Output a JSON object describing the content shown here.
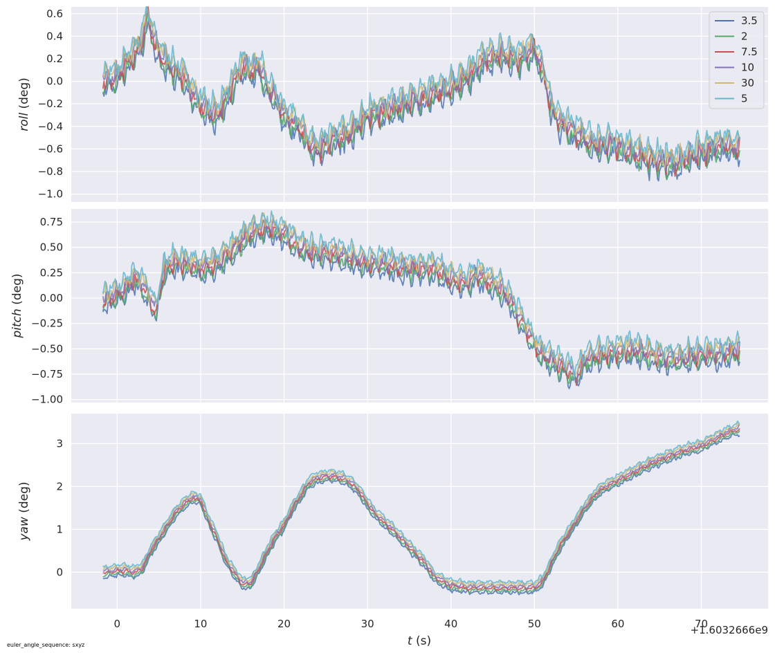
{
  "footnote": "euler_angle_sequence: sxyz",
  "chart_data": {
    "type": "line",
    "shared_x": true,
    "x_axis": {
      "label_var": "t",
      "label_unit": " (s)",
      "offset_text": "+1.6032666e9",
      "ticks": [
        0,
        10,
        20,
        30,
        40,
        50,
        60,
        70
      ],
      "xlim": [
        -5.5,
        78
      ]
    },
    "legend": {
      "location": "upper right of top panel",
      "entries": [
        "3.5",
        "2",
        "7.5",
        "10",
        "30",
        "5"
      ]
    },
    "series_colors": {
      "3.5": "#4c72b0",
      "2": "#55a868",
      "7.5": "#c44e52",
      "10": "#8172b2",
      "30": "#ccb974",
      "5": "#64b5cd"
    },
    "background": "#eaeaf2",
    "grid": true,
    "panels": [
      {
        "name": "roll",
        "ylabel_var": "roll",
        "ylabel_unit": " (deg)",
        "ylim": [
          -1.07,
          0.66
        ],
        "yticks": [
          -1.0,
          -0.8,
          -0.6,
          -0.4,
          -0.2,
          0.0,
          0.2,
          0.4,
          0.6
        ],
        "ytick_labels": [
          "−1.0",
          "−0.8",
          "−0.6",
          "−0.4",
          "−0.2",
          "0.0",
          "0.2",
          "0.4",
          "0.6"
        ],
        "key_points": [
          [
            -1.7,
            0.0
          ],
          [
            0,
            0.05
          ],
          [
            1,
            0.15
          ],
          [
            2,
            0.25
          ],
          [
            3,
            0.35
          ],
          [
            3.6,
            0.6
          ],
          [
            4.5,
            0.35
          ],
          [
            5.5,
            0.2
          ],
          [
            7,
            0.1
          ],
          [
            8,
            0.05
          ],
          [
            9,
            -0.1
          ],
          [
            10,
            -0.2
          ],
          [
            11,
            -0.25
          ],
          [
            12,
            -0.3
          ],
          [
            13,
            -0.15
          ],
          [
            14,
            0.0
          ],
          [
            15,
            0.15
          ],
          [
            16,
            0.1
          ],
          [
            17,
            0.15
          ],
          [
            18,
            -0.05
          ],
          [
            19,
            -0.15
          ],
          [
            20,
            -0.3
          ],
          [
            21,
            -0.35
          ],
          [
            22,
            -0.4
          ],
          [
            23,
            -0.55
          ],
          [
            24,
            -0.6
          ],
          [
            25,
            -0.55
          ],
          [
            26,
            -0.5
          ],
          [
            28,
            -0.45
          ],
          [
            30,
            -0.3
          ],
          [
            32,
            -0.25
          ],
          [
            34,
            -0.2
          ],
          [
            36,
            -0.15
          ],
          [
            38,
            -0.1
          ],
          [
            40,
            -0.05
          ],
          [
            42,
            0.05
          ],
          [
            44,
            0.2
          ],
          [
            46,
            0.25
          ],
          [
            48,
            0.2
          ],
          [
            50,
            0.3
          ],
          [
            51,
            0.1
          ],
          [
            52,
            -0.2
          ],
          [
            53,
            -0.35
          ],
          [
            55,
            -0.45
          ],
          [
            57,
            -0.55
          ],
          [
            59,
            -0.55
          ],
          [
            61,
            -0.6
          ],
          [
            63,
            -0.65
          ],
          [
            65,
            -0.7
          ],
          [
            67,
            -0.72
          ],
          [
            69,
            -0.65
          ],
          [
            71,
            -0.6
          ],
          [
            73,
            -0.55
          ],
          [
            74.5,
            -0.6
          ]
        ],
        "noise": 0.1
      },
      {
        "name": "pitch",
        "ylabel_var": "pitch",
        "ylabel_unit": " (deg)",
        "ylim": [
          -1.03,
          0.88
        ],
        "yticks": [
          -1.0,
          -0.75,
          -0.5,
          -0.25,
          0.0,
          0.25,
          0.5,
          0.75
        ],
        "ytick_labels": [
          "−1.00",
          "−0.75",
          "−0.50",
          "−0.25",
          "0.00",
          "0.25",
          "0.50",
          "0.75"
        ],
        "key_points": [
          [
            -1.7,
            -0.02
          ],
          [
            0,
            0.05
          ],
          [
            1,
            0.1
          ],
          [
            2,
            0.2
          ],
          [
            3,
            0.15
          ],
          [
            4,
            0.0
          ],
          [
            4.7,
            -0.12
          ],
          [
            5.5,
            0.25
          ],
          [
            6.5,
            0.35
          ],
          [
            8,
            0.35
          ],
          [
            10,
            0.3
          ],
          [
            12,
            0.35
          ],
          [
            14,
            0.5
          ],
          [
            16,
            0.65
          ],
          [
            18,
            0.7
          ],
          [
            20,
            0.65
          ],
          [
            22,
            0.5
          ],
          [
            24,
            0.45
          ],
          [
            26,
            0.45
          ],
          [
            28,
            0.4
          ],
          [
            30,
            0.35
          ],
          [
            32,
            0.35
          ],
          [
            34,
            0.3
          ],
          [
            36,
            0.3
          ],
          [
            38,
            0.3
          ],
          [
            40,
            0.2
          ],
          [
            42,
            0.15
          ],
          [
            43,
            0.25
          ],
          [
            44,
            0.2
          ],
          [
            45,
            0.15
          ],
          [
            46,
            0.1
          ],
          [
            47,
            0.0
          ],
          [
            48,
            -0.15
          ],
          [
            49,
            -0.3
          ],
          [
            50,
            -0.45
          ],
          [
            51,
            -0.55
          ],
          [
            52,
            -0.6
          ],
          [
            53,
            -0.65
          ],
          [
            54,
            -0.7
          ],
          [
            55,
            -0.78
          ],
          [
            56,
            -0.6
          ],
          [
            58,
            -0.55
          ],
          [
            60,
            -0.52
          ],
          [
            62,
            -0.5
          ],
          [
            64,
            -0.55
          ],
          [
            66,
            -0.6
          ],
          [
            68,
            -0.58
          ],
          [
            70,
            -0.55
          ],
          [
            72,
            -0.55
          ],
          [
            74.5,
            -0.5
          ]
        ],
        "noise": 0.09
      },
      {
        "name": "yaw",
        "ylabel_var": "yaw",
        "ylabel_unit": " (deg)",
        "ylim": [
          -0.85,
          3.7
        ],
        "yticks": [
          0,
          1,
          2,
          3
        ],
        "ytick_labels": [
          "0",
          "1",
          "2",
          "3"
        ],
        "key_points": [
          [
            -1.7,
            0.0
          ],
          [
            0,
            0.05
          ],
          [
            1,
            0.05
          ],
          [
            2,
            0.0
          ],
          [
            3,
            0.1
          ],
          [
            4,
            0.5
          ],
          [
            5,
            0.8
          ],
          [
            6,
            1.1
          ],
          [
            7,
            1.4
          ],
          [
            8,
            1.6
          ],
          [
            9,
            1.75
          ],
          [
            10,
            1.7
          ],
          [
            11,
            1.2
          ],
          [
            12,
            0.8
          ],
          [
            13,
            0.3
          ],
          [
            14,
            0.0
          ],
          [
            15,
            -0.25
          ],
          [
            16,
            -0.25
          ],
          [
            17,
            0.1
          ],
          [
            18,
            0.5
          ],
          [
            19,
            0.85
          ],
          [
            20,
            1.1
          ],
          [
            21,
            1.5
          ],
          [
            22,
            1.8
          ],
          [
            23,
            2.1
          ],
          [
            24,
            2.2
          ],
          [
            25,
            2.25
          ],
          [
            26,
            2.25
          ],
          [
            27,
            2.2
          ],
          [
            28,
            2.1
          ],
          [
            29,
            1.9
          ],
          [
            30,
            1.6
          ],
          [
            31,
            1.35
          ],
          [
            33,
            1.0
          ],
          [
            35,
            0.6
          ],
          [
            37,
            0.2
          ],
          [
            38,
            -0.1
          ],
          [
            40,
            -0.3
          ],
          [
            42,
            -0.35
          ],
          [
            44,
            -0.35
          ],
          [
            46,
            -0.35
          ],
          [
            48,
            -0.35
          ],
          [
            50,
            -0.35
          ],
          [
            51,
            -0.2
          ],
          [
            52,
            0.2
          ],
          [
            53,
            0.6
          ],
          [
            54,
            0.9
          ],
          [
            55,
            1.2
          ],
          [
            56,
            1.5
          ],
          [
            57,
            1.75
          ],
          [
            58,
            1.95
          ],
          [
            60,
            2.15
          ],
          [
            62,
            2.35
          ],
          [
            64,
            2.55
          ],
          [
            66,
            2.7
          ],
          [
            68,
            2.85
          ],
          [
            70,
            2.95
          ],
          [
            72,
            3.15
          ],
          [
            73,
            3.25
          ],
          [
            74.5,
            3.35
          ]
        ],
        "noise": 0.05
      }
    ]
  }
}
